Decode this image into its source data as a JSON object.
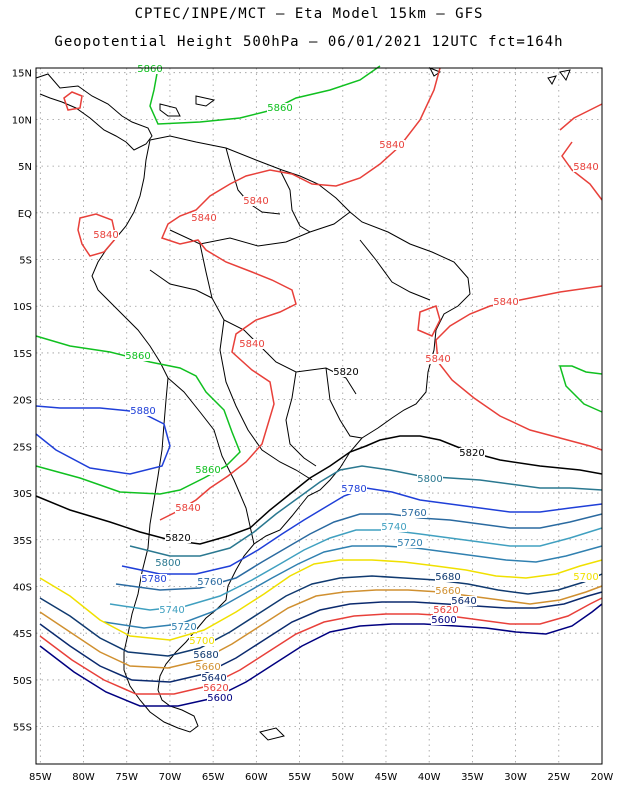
{
  "header": {
    "line1": "CPTEC/INPE/MCT –  Eta Model 15km – GFS",
    "line2": "Geopotential Height 500hPa – 06/01/2021 12UTC fct=164h"
  },
  "axes": {
    "lat_labels": [
      "15N",
      "10N",
      "5N",
      "EQ",
      "5S",
      "10S",
      "15S",
      "20S",
      "25S",
      "30S",
      "35S",
      "40S",
      "45S",
      "50S",
      "55S"
    ],
    "lon_labels": [
      "85W",
      "80W",
      "75W",
      "70W",
      "65W",
      "60W",
      "55W",
      "50W",
      "45W",
      "40W",
      "35W",
      "30W",
      "25W",
      "20W"
    ]
  },
  "contour_colors": {
    "5600": "#000080",
    "5620": "#e8403a",
    "5640": "#0b2a6e",
    "5660": "#d09030",
    "5680": "#103a70",
    "5700": "#f0e000",
    "5720": "#3080b0",
    "5740": "#40a0c0",
    "5760": "#2a6aa0",
    "5780": "#1f3fd8",
    "5800": "#2a7890",
    "5820": "#000000",
    "5840": "#e8403a",
    "5860": "#10c020",
    "5880": "#1f3fd8"
  },
  "contour_labels": [
    {
      "text": "5860",
      "level": "5860"
    },
    {
      "text": "5860",
      "level": "5860"
    },
    {
      "text": "5840",
      "level": "5840"
    },
    {
      "text": "5840",
      "level": "5840"
    },
    {
      "text": "5840",
      "level": "5840"
    },
    {
      "text": "5840",
      "level": "5840"
    },
    {
      "text": "5840",
      "level": "5840"
    },
    {
      "text": "5840",
      "level": "5840"
    },
    {
      "text": "5840",
      "level": "5840"
    },
    {
      "text": "5840",
      "level": "5840"
    },
    {
      "text": "5860",
      "level": "5860"
    },
    {
      "text": "5880",
      "level": "5880"
    },
    {
      "text": "5860",
      "level": "5860"
    },
    {
      "text": "5840",
      "level": "5840"
    },
    {
      "text": "5820",
      "level": "5820"
    },
    {
      "text": "5820",
      "level": "5820"
    },
    {
      "text": "5820",
      "level": "5820"
    },
    {
      "text": "5800",
      "level": "5800"
    },
    {
      "text": "5780",
      "level": "5780"
    },
    {
      "text": "5760",
      "level": "5760"
    },
    {
      "text": "5740",
      "level": "5740"
    },
    {
      "text": "5720",
      "level": "5720"
    },
    {
      "text": "5800",
      "level": "5800"
    },
    {
      "text": "5780",
      "level": "5780"
    },
    {
      "text": "5760",
      "level": "5760"
    },
    {
      "text": "5740",
      "level": "5740"
    },
    {
      "text": "5720",
      "level": "5720"
    },
    {
      "text": "5700",
      "level": "5700"
    },
    {
      "text": "5700",
      "level": "5700"
    },
    {
      "text": "5680",
      "level": "5680"
    },
    {
      "text": "5660",
      "level": "5660"
    },
    {
      "text": "5640",
      "level": "5640"
    },
    {
      "text": "5620",
      "level": "5620"
    },
    {
      "text": "5600",
      "level": "5600"
    },
    {
      "text": "5680",
      "level": "5680"
    },
    {
      "text": "5660",
      "level": "5660"
    },
    {
      "text": "5640",
      "level": "5640"
    },
    {
      "text": "5620",
      "level": "5620"
    },
    {
      "text": "5600",
      "level": "5600"
    }
  ]
}
